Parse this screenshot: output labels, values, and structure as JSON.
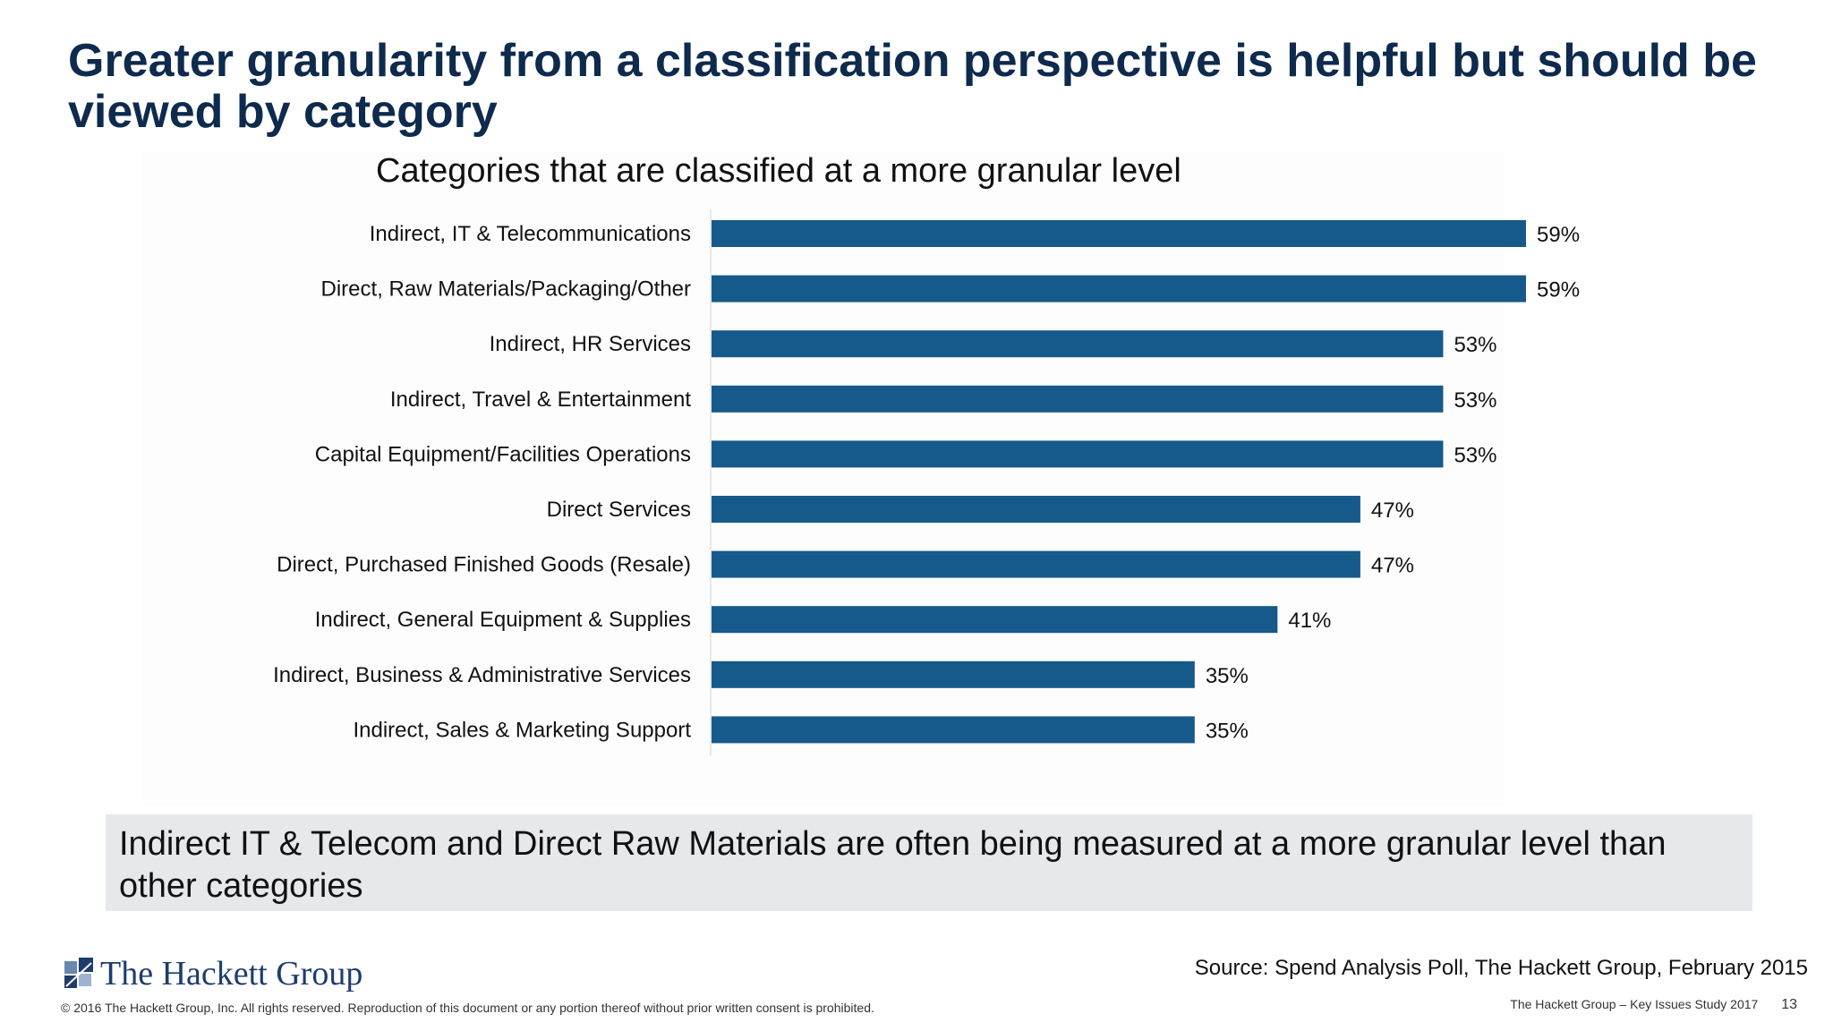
{
  "slide": {
    "title": "Greater granularity from a classification perspective is helpful but should be viewed by category",
    "callout": "Indirect IT & Telecom and Direct Raw Materials are often being measured at a more granular level than other categories",
    "source": "Source: Spend Analysis Poll, The Hackett Group, February 2015",
    "logo_text": "The Hackett Group",
    "copyright": "© 2016 The Hackett Group, Inc. All rights reserved. Reproduction of this document or any portion thereof without prior written consent is prohibited.",
    "footer_study": "The Hackett Group – Key Issues Study 2017",
    "page_number": "13"
  },
  "colors": {
    "title": "#0e2a4d",
    "bar": "#155a8a",
    "callout_bg": "#e7e8ec",
    "logo": "#1d3c6e"
  },
  "icons": {
    "logo": "hackett-logo-squares-icon"
  },
  "chart_data": {
    "type": "bar",
    "orientation": "horizontal",
    "title": "Categories that are classified at a more granular level",
    "categories": [
      "Indirect, IT & Telecommunications",
      "Direct, Raw Materials/Packaging/Other",
      "Indirect, HR Services",
      "Indirect, Travel & Entertainment",
      "Capital Equipment/Facilities Operations",
      "Direct Services",
      "Direct, Purchased Finished Goods (Resale)",
      "Indirect, General Equipment & Supplies",
      "Indirect, Business & Administrative Services",
      "Indirect, Sales & Marketing Support"
    ],
    "values": [
      59,
      59,
      53,
      53,
      53,
      47,
      47,
      41,
      35,
      35
    ],
    "value_labels": [
      "59%",
      "59%",
      "53%",
      "53%",
      "53%",
      "47%",
      "47%",
      "41%",
      "35%",
      "35%"
    ],
    "unit": "%",
    "xlim": [
      0,
      59
    ],
    "grid": false,
    "legend": "none"
  }
}
